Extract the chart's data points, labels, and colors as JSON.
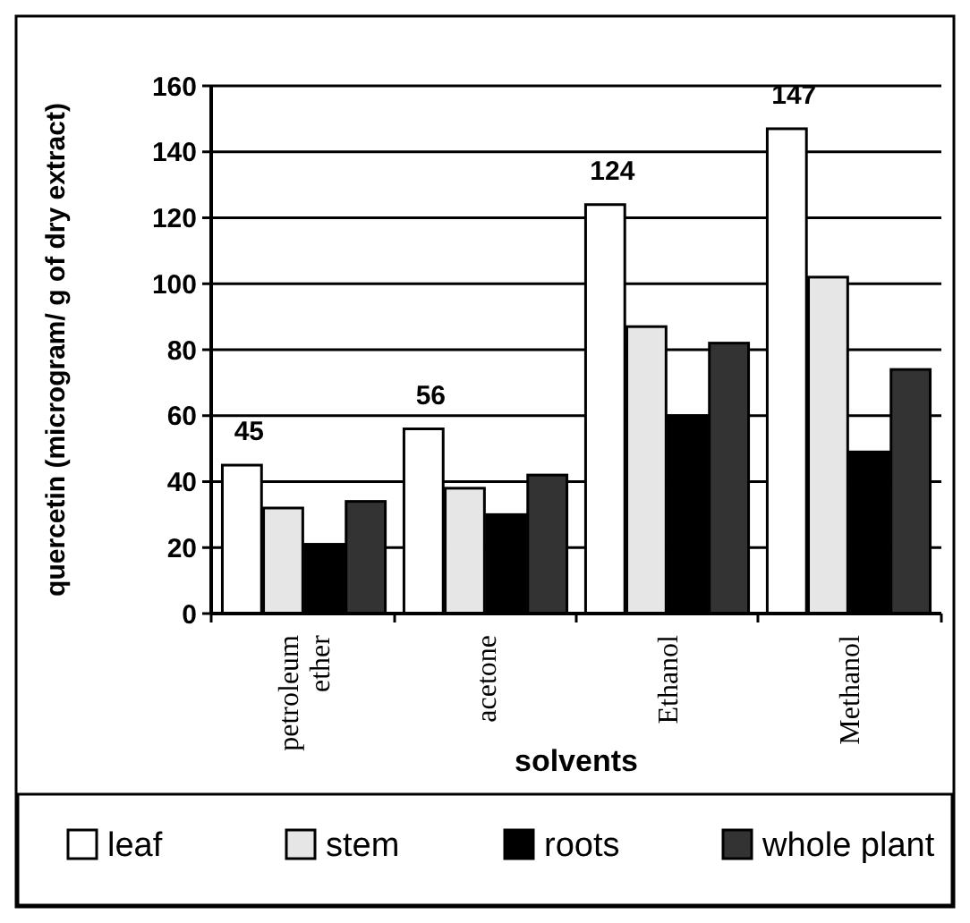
{
  "chart_data": {
    "type": "bar",
    "xlabel": "solvents",
    "ylabel": "quercetin (microgram/ g of dry extract)",
    "categories": [
      "petroleum ether",
      "acetone",
      "Ethanol",
      "Methanol"
    ],
    "series": [
      {
        "name": "leaf",
        "color": "#ffffff",
        "values": [
          45,
          56,
          124,
          147
        ],
        "value_labels": [
          "45",
          "56",
          "124",
          "147"
        ]
      },
      {
        "name": "stem",
        "color": "#e6e6e6",
        "values": [
          32,
          38,
          87,
          102
        ]
      },
      {
        "name": "roots",
        "color": "#000000",
        "values": [
          21,
          30,
          60,
          49
        ]
      },
      {
        "name": "whole plant",
        "color": "#333333",
        "values": [
          34,
          42,
          82,
          74
        ]
      }
    ],
    "ylim": [
      0,
      160
    ],
    "yticks": [
      0,
      20,
      40,
      60,
      80,
      100,
      120,
      140,
      160
    ],
    "grid": "y",
    "legend": "bottom"
  }
}
